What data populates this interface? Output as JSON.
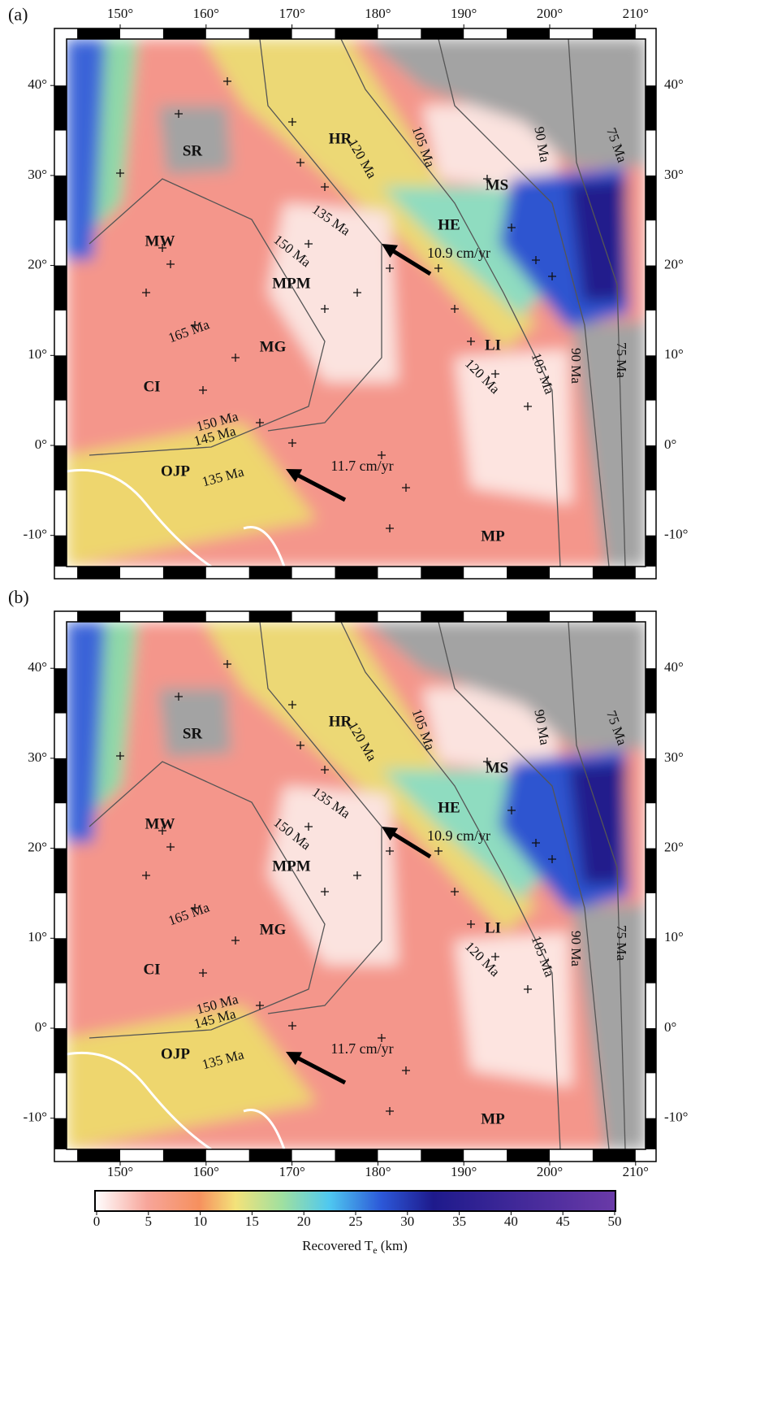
{
  "panels": [
    {
      "label": "(a)"
    },
    {
      "label": "(b)"
    }
  ],
  "lon_ticks": [
    {
      "value": 150,
      "label": "150°"
    },
    {
      "value": 160,
      "label": "160°"
    },
    {
      "value": 170,
      "label": "170°"
    },
    {
      "value": 180,
      "label": "180°"
    },
    {
      "value": 190,
      "label": "190°"
    },
    {
      "value": 200,
      "label": "200°"
    },
    {
      "value": 210,
      "label": "210°"
    }
  ],
  "lat_ticks": [
    {
      "value": 40,
      "label": "40°"
    },
    {
      "value": 30,
      "label": "30°"
    },
    {
      "value": 20,
      "label": "20°"
    },
    {
      "value": 10,
      "label": "10°"
    },
    {
      "value": 0,
      "label": "0°"
    },
    {
      "value": -10,
      "label": "-10°"
    }
  ],
  "regions": [
    "SR",
    "HR",
    "MS",
    "HE",
    "MW",
    "MPM",
    "MG",
    "LI",
    "CI",
    "OJP",
    "MP"
  ],
  "isochrons": [
    "105 Ma",
    "90 Ma",
    "75 Ma",
    "120 Ma",
    "135 Ma",
    "150 Ma",
    "165 Ma",
    "150 Ma",
    "145 Ma",
    "135 Ma",
    "120 Ma",
    "105 Ma",
    "90 Ma",
    "75 Ma"
  ],
  "velocities": [
    "10.9 cm/yr",
    "11.7 cm/yr"
  ],
  "colorbar": {
    "lim": [
      0,
      50
    ],
    "ticks": [
      0,
      5,
      10,
      15,
      20,
      25,
      30,
      35,
      40,
      45,
      50
    ],
    "label": "Recovered",
    "symbol": "T",
    "subscript": "e",
    "unit": "(km)"
  }
}
